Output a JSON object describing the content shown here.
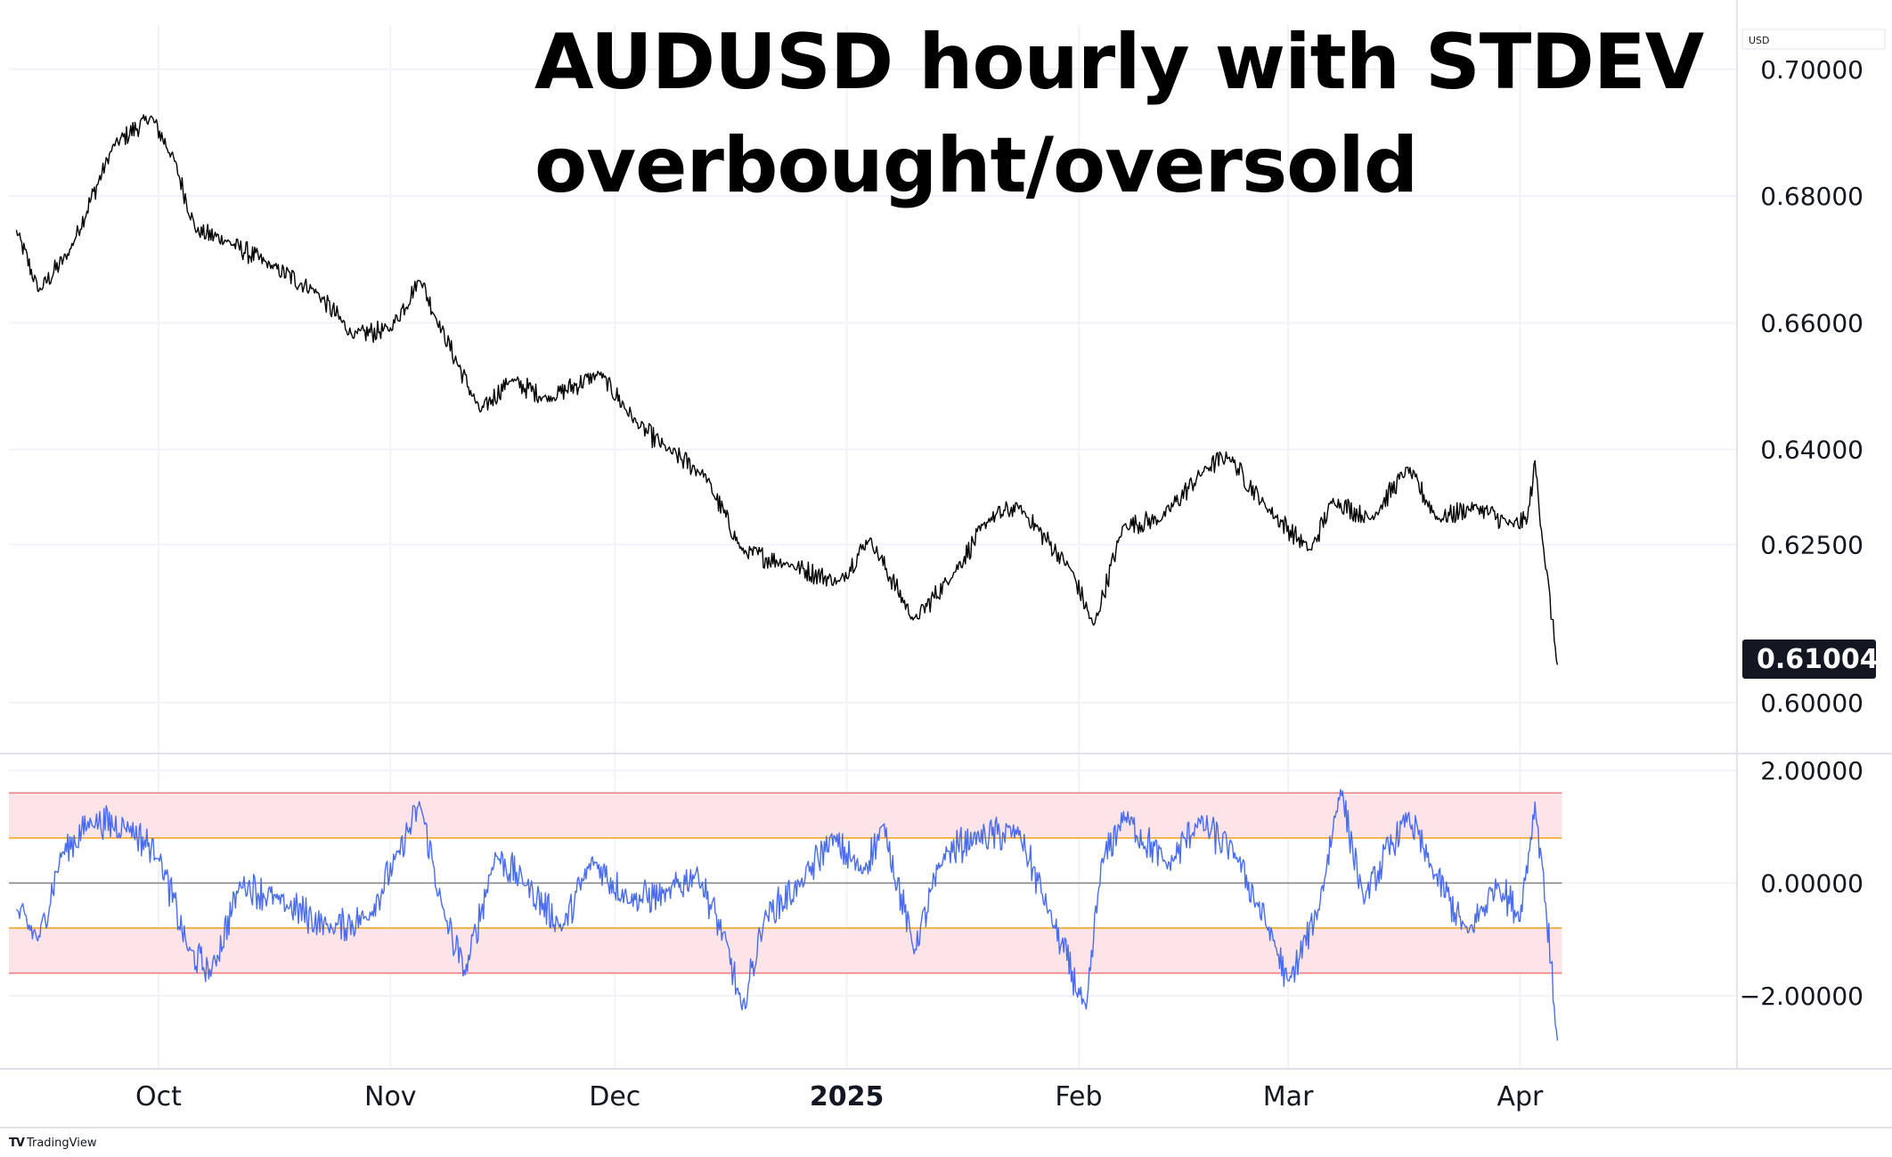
{
  "title_line1": "AUDUSD hourly with STDEV",
  "title_line2": "overbought/oversold",
  "currency": "USD",
  "brand": "TradingView",
  "brand_logo": "TV",
  "last_price_label": "0.61004",
  "colors": {
    "price_line": "#000000",
    "indicator_line": "#4a6cf0",
    "outer_band": "#f08080",
    "inner_band": "#f5a623",
    "band_fill": "#fde4e6",
    "zero_line": "#888888",
    "grid": "#f0f3fa",
    "price_tag_bg": "#131722"
  },
  "chart_data": [
    {
      "type": "line",
      "series": [
        {
          "name": "AUDUSD",
          "values": []
        }
      ],
      "ylim": [
        0.592,
        0.707
      ],
      "y_ticks": [
        "0.70000",
        "0.68000",
        "0.66000",
        "0.64000",
        "0.62500",
        "0.60000"
      ],
      "y_tick_values": [
        0.7,
        0.68,
        0.66,
        0.64,
        0.625,
        0.6
      ],
      "x_ticks": [
        "Oct",
        "Nov",
        "Dec",
        "2025",
        "Feb",
        "Mar",
        "Apr"
      ],
      "last_value": 0.61004,
      "anchors": [
        [
          "2024-09-12",
          0.6745
        ],
        [
          "2024-09-15",
          0.665
        ],
        [
          "2024-09-19",
          0.671
        ],
        [
          "2024-09-25",
          0.688
        ],
        [
          "2024-09-30",
          0.6925
        ],
        [
          "2024-10-03",
          0.686
        ],
        [
          "2024-10-06",
          0.6745
        ],
        [
          "2024-10-10",
          0.673
        ],
        [
          "2024-10-16",
          0.669
        ],
        [
          "2024-10-22",
          0.665
        ],
        [
          "2024-10-27",
          0.658
        ],
        [
          "2024-11-01",
          0.659
        ],
        [
          "2024-11-05",
          0.667
        ],
        [
          "2024-11-07",
          0.661
        ],
        [
          "2024-11-13",
          0.646
        ],
        [
          "2024-11-17",
          0.651
        ],
        [
          "2024-11-22",
          0.648
        ],
        [
          "2024-11-29",
          0.652
        ],
        [
          "2024-12-04",
          0.644
        ],
        [
          "2024-12-08",
          0.64
        ],
        [
          "2024-12-13",
          0.636
        ],
        [
          "2024-12-18",
          0.624
        ],
        [
          "2024-12-24",
          0.622
        ],
        [
          "2024-12-31",
          0.619
        ],
        [
          "2025-01-04",
          0.626
        ],
        [
          "2025-01-10",
          0.613
        ],
        [
          "2025-01-15",
          0.62
        ],
        [
          "2025-01-20",
          0.629
        ],
        [
          "2025-01-24",
          0.631
        ],
        [
          "2025-01-31",
          0.621
        ],
        [
          "2025-02-03",
          0.612
        ],
        [
          "2025-02-07",
          0.628
        ],
        [
          "2025-02-12",
          0.629
        ],
        [
          "2025-02-18",
          0.637
        ],
        [
          "2025-02-21",
          0.639
        ],
        [
          "2025-02-26",
          0.631
        ],
        [
          "2025-03-04",
          0.624
        ],
        [
          "2025-03-07",
          0.632
        ],
        [
          "2025-03-12",
          0.629
        ],
        [
          "2025-03-17",
          0.637
        ],
        [
          "2025-03-21",
          0.629
        ],
        [
          "2025-03-26",
          0.631
        ],
        [
          "2025-03-31",
          0.628
        ],
        [
          "2025-04-02",
          0.629
        ],
        [
          "2025-04-03",
          0.638
        ],
        [
          "2025-04-04",
          0.626
        ],
        [
          "2025-04-06",
          0.606
        ]
      ]
    },
    {
      "type": "line",
      "series": [
        {
          "name": "STDEV",
          "values": []
        }
      ],
      "ylim": [
        -3.3,
        2.3
      ],
      "y_ticks": [
        "2.00000",
        "0.00000",
        "−2.00000"
      ],
      "y_tick_values": [
        2,
        0,
        -2
      ],
      "bands": {
        "outer": [
          1.6,
          -1.6
        ],
        "inner": [
          0.8,
          -0.8
        ],
        "zero": 0
      },
      "anchors": [
        [
          "2024-09-12",
          -0.5
        ],
        [
          "2024-09-15",
          -1.0
        ],
        [
          "2024-09-18",
          0.5
        ],
        [
          "2024-09-22",
          1.1
        ],
        [
          "2024-09-27",
          1.0
        ],
        [
          "2024-10-01",
          0.5
        ],
        [
          "2024-10-05",
          -1.2
        ],
        [
          "2024-10-08",
          -1.6
        ],
        [
          "2024-10-12",
          0.0
        ],
        [
          "2024-10-17",
          -0.3
        ],
        [
          "2024-10-24",
          -0.8
        ],
        [
          "2024-10-29",
          -0.6
        ],
        [
          "2024-11-02",
          0.5
        ],
        [
          "2024-11-05",
          1.4
        ],
        [
          "2024-11-08",
          -0.5
        ],
        [
          "2024-11-11",
          -1.6
        ],
        [
          "2024-11-15",
          0.5
        ],
        [
          "2024-11-19",
          0.0
        ],
        [
          "2024-11-24",
          -0.8
        ],
        [
          "2024-11-28",
          0.4
        ],
        [
          "2024-12-03",
          -0.3
        ],
        [
          "2024-12-08",
          -0.2
        ],
        [
          "2024-12-12",
          0.2
        ],
        [
          "2024-12-16",
          -1.1
        ],
        [
          "2024-12-18",
          -2.3
        ],
        [
          "2024-12-21",
          -0.6
        ],
        [
          "2024-12-26",
          0.0
        ],
        [
          "2024-12-30",
          0.8
        ],
        [
          "2025-01-03",
          0.2
        ],
        [
          "2025-01-06",
          1.0
        ],
        [
          "2025-01-10",
          -1.2
        ],
        [
          "2025-01-14",
          0.5
        ],
        [
          "2025-01-18",
          0.8
        ],
        [
          "2025-01-24",
          0.9
        ],
        [
          "2025-01-28",
          -0.5
        ],
        [
          "2025-02-02",
          -2.3
        ],
        [
          "2025-02-04",
          0.3
        ],
        [
          "2025-02-07",
          1.2
        ],
        [
          "2025-02-13",
          0.3
        ],
        [
          "2025-02-17",
          1.1
        ],
        [
          "2025-02-22",
          0.5
        ],
        [
          "2025-02-27",
          -1.0
        ],
        [
          "2025-03-01",
          -1.8
        ],
        [
          "2025-03-05",
          -0.5
        ],
        [
          "2025-03-08",
          1.7
        ],
        [
          "2025-03-11",
          -0.3
        ],
        [
          "2025-03-17",
          1.2
        ],
        [
          "2025-03-20",
          0.3
        ],
        [
          "2025-03-25",
          -0.9
        ],
        [
          "2025-03-29",
          0.0
        ],
        [
          "2025-04-01",
          -0.6
        ],
        [
          "2025-04-03",
          1.4
        ],
        [
          "2025-04-04",
          0.3
        ],
        [
          "2025-04-06",
          -2.8
        ]
      ]
    }
  ]
}
